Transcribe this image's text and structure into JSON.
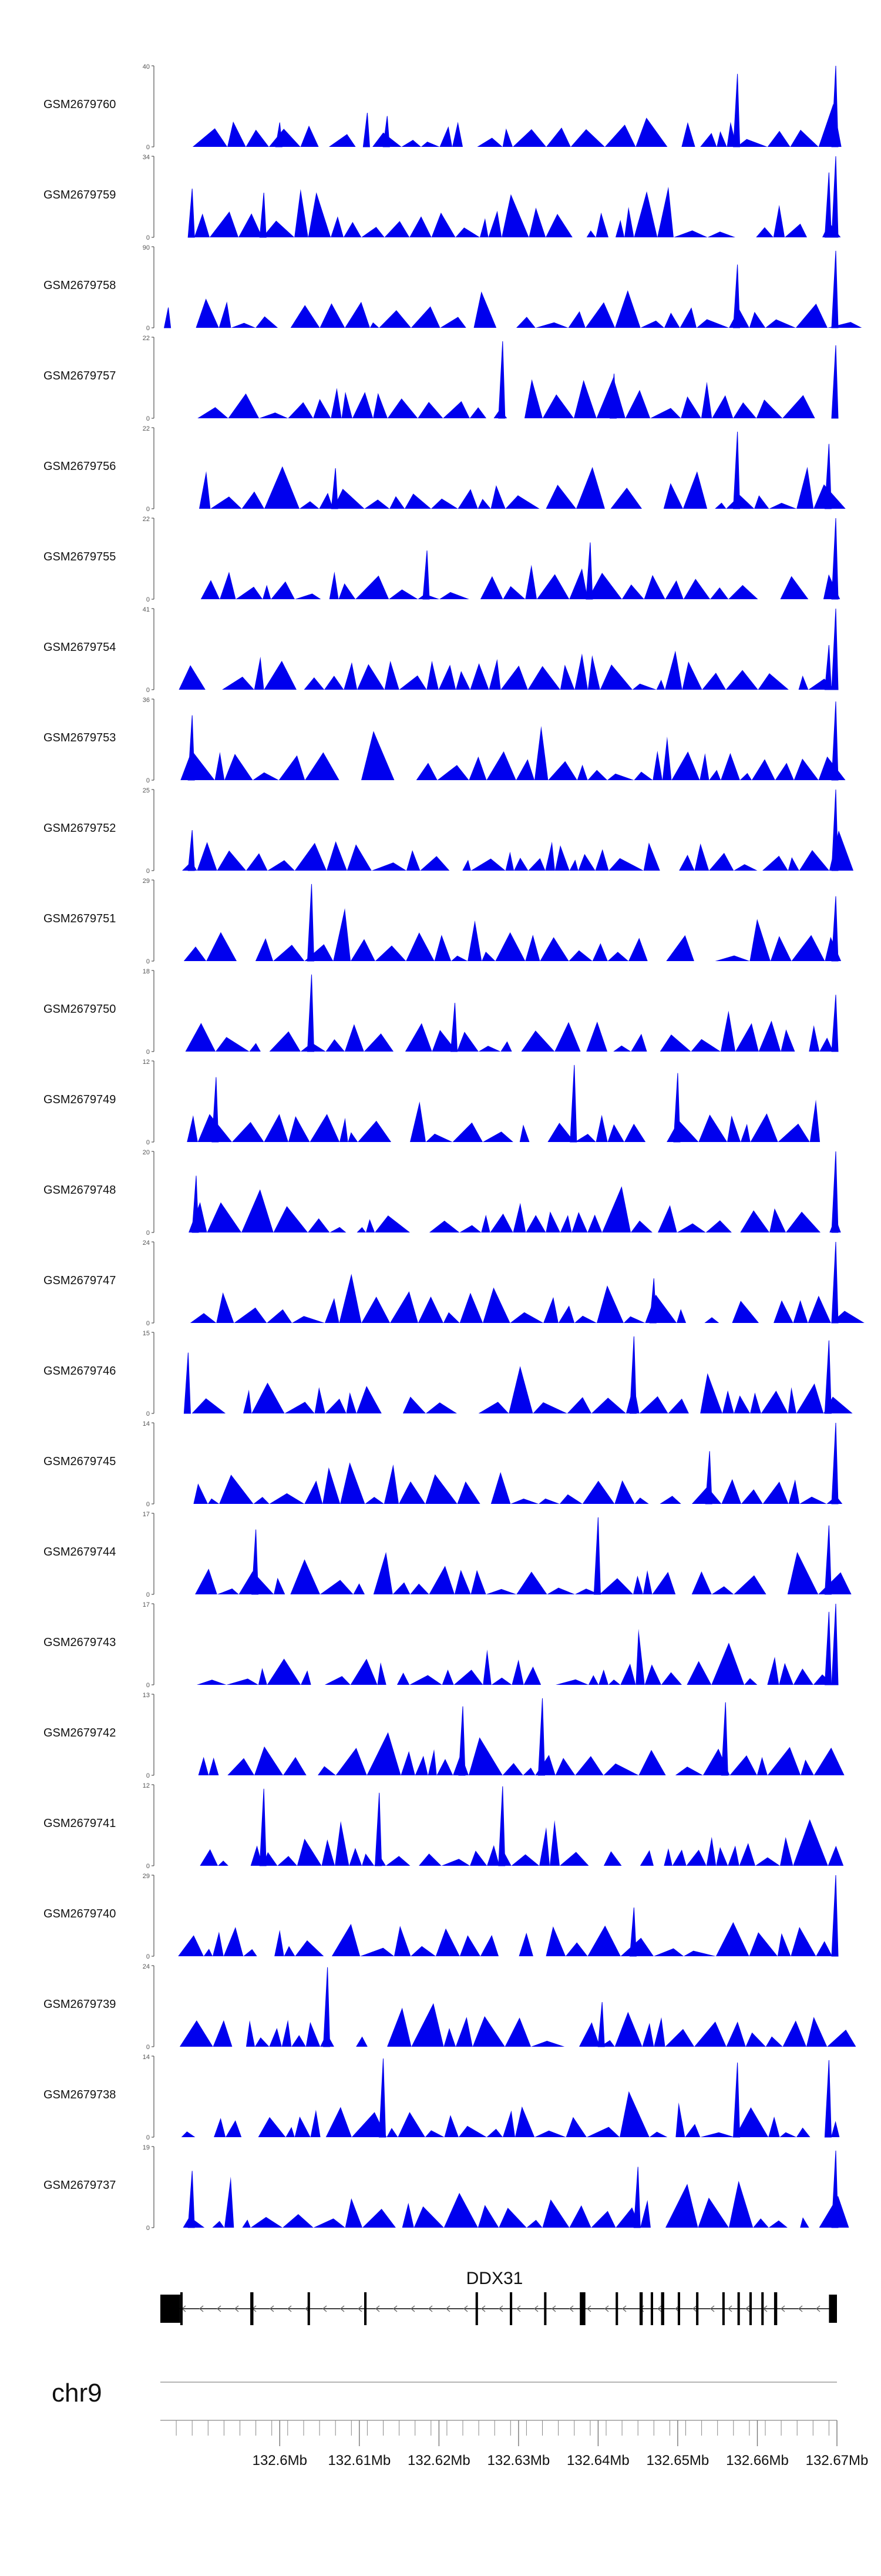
{
  "colors": {
    "signal": "#0000ee",
    "axis": "#555555",
    "gene": "#000000",
    "text": "#111111"
  },
  "chart_data": {
    "type": "area",
    "chromosome": "chr9",
    "x_range": [
      132.585,
      132.67
    ],
    "x_unit": "Mb",
    "axis_ticks": [
      "132.6Mb",
      "132.61Mb",
      "132.62Mb",
      "132.63Mb",
      "132.64Mb",
      "132.65Mb",
      "132.66Mb",
      "132.67Mb"
    ],
    "axis_tick_values": [
      132.6,
      132.61,
      132.62,
      132.63,
      132.64,
      132.65,
      132.66,
      132.67
    ],
    "gene": {
      "name": "DDX31",
      "strand": "-",
      "start": 132.585,
      "end": 132.67,
      "exons": [
        {
          "start": 132.585,
          "end": 132.5875
        },
        {
          "start": 132.5875,
          "end": 132.5878
        },
        {
          "start": 132.5963,
          "end": 132.5967
        },
        {
          "start": 132.6035,
          "end": 132.6038
        },
        {
          "start": 132.6106,
          "end": 132.6109
        },
        {
          "start": 132.6246,
          "end": 132.6249
        },
        {
          "start": 132.6289,
          "end": 132.6292
        },
        {
          "start": 132.6332,
          "end": 132.6335
        },
        {
          "start": 132.6377,
          "end": 132.6384
        },
        {
          "start": 132.6422,
          "end": 132.6425
        },
        {
          "start": 132.6452,
          "end": 132.6456
        },
        {
          "start": 132.6466,
          "end": 132.6469
        },
        {
          "start": 132.6479,
          "end": 132.6483
        },
        {
          "start": 132.65,
          "end": 132.6503
        },
        {
          "start": 132.6523,
          "end": 132.6526
        },
        {
          "start": 132.6556,
          "end": 132.6559
        },
        {
          "start": 132.6575,
          "end": 132.6578
        },
        {
          "start": 132.659,
          "end": 132.6593
        },
        {
          "start": 132.6605,
          "end": 132.6608
        },
        {
          "start": 132.6621,
          "end": 132.6625
        },
        {
          "start": 132.669,
          "end": 132.67
        }
      ]
    },
    "tracks": [
      {
        "name": "GSM2679760",
        "ymax": "40",
        "ymin": "0",
        "max": 40,
        "peaks": [
          {
            "x": 132.6575,
            "h": 0.9
          },
          {
            "x": 132.67,
            "h": 1.0
          },
          {
            "x": 132.611,
            "h": 0.42
          },
          {
            "x": 132.6135,
            "h": 0.38
          },
          {
            "x": 132.6,
            "h": 0.3
          }
        ]
      },
      {
        "name": "GSM2679759",
        "ymax": "34",
        "ymin": "0",
        "max": 34,
        "peaks": [
          {
            "x": 132.67,
            "h": 1.0
          },
          {
            "x": 132.589,
            "h": 0.6
          },
          {
            "x": 132.598,
            "h": 0.55
          },
          {
            "x": 132.669,
            "h": 0.8
          }
        ]
      },
      {
        "name": "GSM2679758",
        "ymax": "90",
        "ymin": "0",
        "max": 90,
        "peaks": [
          {
            "x": 132.6575,
            "h": 0.78
          },
          {
            "x": 132.67,
            "h": 0.95
          },
          {
            "x": 132.586,
            "h": 0.25
          }
        ]
      },
      {
        "name": "GSM2679757",
        "ymax": "22",
        "ymin": "0",
        "max": 22,
        "peaks": [
          {
            "x": 132.628,
            "h": 0.95
          },
          {
            "x": 132.67,
            "h": 0.9
          },
          {
            "x": 132.642,
            "h": 0.55
          }
        ]
      },
      {
        "name": "GSM2679756",
        "ymax": "22",
        "ymin": "0",
        "max": 22,
        "peaks": [
          {
            "x": 132.6575,
            "h": 0.95
          },
          {
            "x": 132.669,
            "h": 0.8
          },
          {
            "x": 132.607,
            "h": 0.5
          }
        ]
      },
      {
        "name": "GSM2679755",
        "ymax": "22",
        "ymin": "0",
        "max": 22,
        "peaks": [
          {
            "x": 132.67,
            "h": 1.0
          },
          {
            "x": 132.639,
            "h": 0.7
          },
          {
            "x": 132.6185,
            "h": 0.6
          }
        ]
      },
      {
        "name": "GSM2679754",
        "ymax": "41",
        "ymin": "0",
        "max": 41,
        "peaks": [
          {
            "x": 132.67,
            "h": 1.0
          },
          {
            "x": 132.669,
            "h": 0.55
          }
        ]
      },
      {
        "name": "GSM2679753",
        "ymax": "36",
        "ymin": "0",
        "max": 36,
        "peaks": [
          {
            "x": 132.589,
            "h": 0.8
          },
          {
            "x": 132.67,
            "h": 0.97
          }
        ]
      },
      {
        "name": "GSM2679752",
        "ymax": "25",
        "ymin": "0",
        "max": 25,
        "peaks": [
          {
            "x": 132.67,
            "h": 1.0
          },
          {
            "x": 132.589,
            "h": 0.5
          }
        ]
      },
      {
        "name": "GSM2679751",
        "ymax": "29",
        "ymin": "0",
        "max": 29,
        "peaks": [
          {
            "x": 132.604,
            "h": 0.95
          },
          {
            "x": 132.67,
            "h": 0.8
          }
        ]
      },
      {
        "name": "GSM2679750",
        "ymax": "18",
        "ymin": "0",
        "max": 18,
        "peaks": [
          {
            "x": 132.604,
            "h": 0.95
          },
          {
            "x": 132.67,
            "h": 0.7
          },
          {
            "x": 132.622,
            "h": 0.6
          }
        ]
      },
      {
        "name": "GSM2679749",
        "ymax": "12",
        "ymin": "0",
        "max": 12,
        "peaks": [
          {
            "x": 132.637,
            "h": 0.95
          },
          {
            "x": 132.65,
            "h": 0.85
          },
          {
            "x": 132.592,
            "h": 0.8
          }
        ]
      },
      {
        "name": "GSM2679748",
        "ymax": "20",
        "ymin": "0",
        "max": 20,
        "peaks": [
          {
            "x": 132.67,
            "h": 1.0
          },
          {
            "x": 132.5895,
            "h": 0.7
          }
        ]
      },
      {
        "name": "GSM2679747",
        "ymax": "24",
        "ymin": "0",
        "max": 24,
        "peaks": [
          {
            "x": 132.67,
            "h": 1.0
          },
          {
            "x": 132.647,
            "h": 0.55
          }
        ]
      },
      {
        "name": "GSM2679746",
        "ymax": "15",
        "ymin": "0",
        "max": 15,
        "peaks": [
          {
            "x": 132.6445,
            "h": 0.95
          },
          {
            "x": 132.669,
            "h": 0.9
          },
          {
            "x": 132.5885,
            "h": 0.75
          }
        ]
      },
      {
        "name": "GSM2679745",
        "ymax": "14",
        "ymin": "0",
        "max": 14,
        "peaks": [
          {
            "x": 132.67,
            "h": 1.0
          },
          {
            "x": 132.654,
            "h": 0.65
          }
        ]
      },
      {
        "name": "GSM2679744",
        "ymax": "17",
        "ymin": "0",
        "max": 17,
        "peaks": [
          {
            "x": 132.64,
            "h": 0.95
          },
          {
            "x": 132.669,
            "h": 0.85
          },
          {
            "x": 132.597,
            "h": 0.8
          }
        ]
      },
      {
        "name": "GSM2679743",
        "ymax": "17",
        "ymin": "0",
        "max": 17,
        "peaks": [
          {
            "x": 132.67,
            "h": 1.0
          },
          {
            "x": 132.669,
            "h": 0.9
          }
        ]
      },
      {
        "name": "GSM2679742",
        "ymax": "13",
        "ymin": "0",
        "max": 13,
        "peaks": [
          {
            "x": 132.633,
            "h": 0.95
          },
          {
            "x": 132.656,
            "h": 0.9
          },
          {
            "x": 132.623,
            "h": 0.85
          }
        ]
      },
      {
        "name": "GSM2679741",
        "ymax": "12",
        "ymin": "0",
        "max": 12,
        "peaks": [
          {
            "x": 132.628,
            "h": 0.98
          },
          {
            "x": 132.598,
            "h": 0.95
          },
          {
            "x": 132.6125,
            "h": 0.9
          }
        ]
      },
      {
        "name": "GSM2679740",
        "ymax": "29",
        "ymin": "0",
        "max": 29,
        "peaks": [
          {
            "x": 132.67,
            "h": 1.0
          },
          {
            "x": 132.6445,
            "h": 0.6
          }
        ]
      },
      {
        "name": "GSM2679739",
        "ymax": "24",
        "ymin": "0",
        "max": 24,
        "peaks": [
          {
            "x": 132.606,
            "h": 0.98
          },
          {
            "x": 132.6405,
            "h": 0.55
          }
        ]
      },
      {
        "name": "GSM2679738",
        "ymax": "14",
        "ymin": "0",
        "max": 14,
        "peaks": [
          {
            "x": 132.613,
            "h": 0.97
          },
          {
            "x": 132.6575,
            "h": 0.92
          },
          {
            "x": 132.669,
            "h": 0.95
          }
        ]
      },
      {
        "name": "GSM2679737",
        "ymax": "19",
        "ymin": "0",
        "max": 19,
        "peaks": [
          {
            "x": 132.67,
            "h": 0.95
          },
          {
            "x": 132.645,
            "h": 0.75
          },
          {
            "x": 132.589,
            "h": 0.7
          }
        ]
      }
    ]
  }
}
